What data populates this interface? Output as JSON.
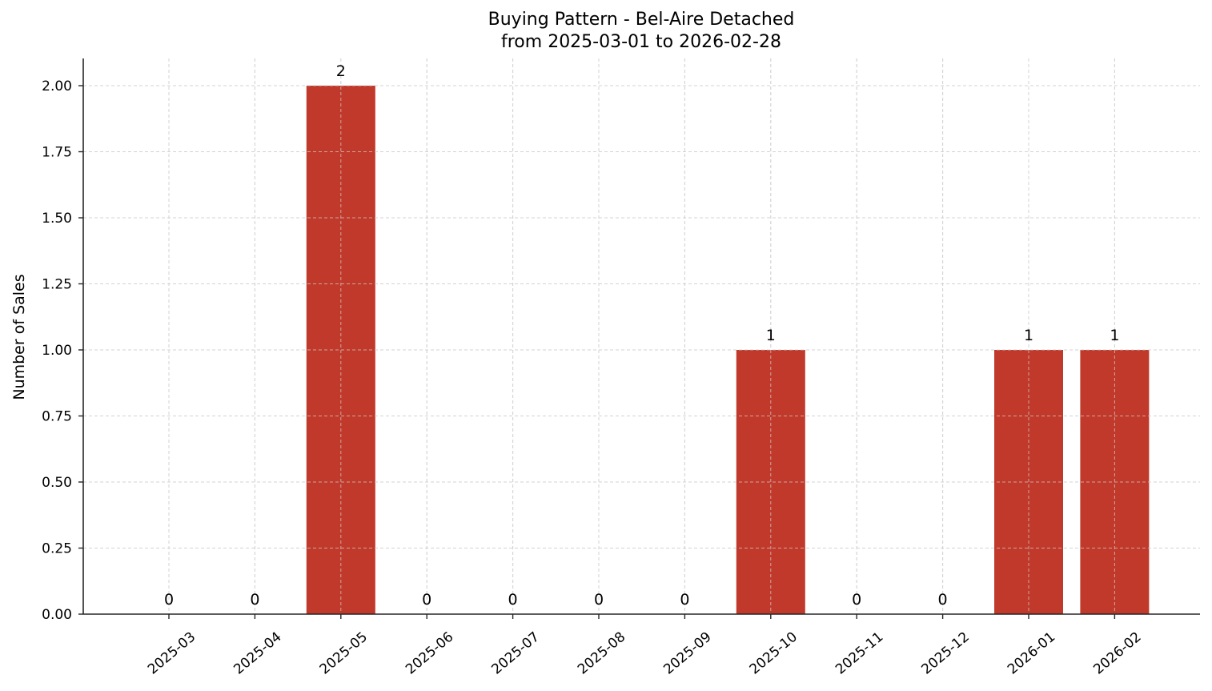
{
  "chart_data": {
    "type": "bar",
    "title": "Buying Pattern - Bel-Aire Detached",
    "subtitle": "from 2025-03-01 to 2026-02-28",
    "xlabel": "",
    "ylabel": "Number of Sales",
    "categories": [
      "2025-03",
      "2025-04",
      "2025-05",
      "2025-06",
      "2025-07",
      "2025-08",
      "2025-09",
      "2025-10",
      "2025-11",
      "2025-12",
      "2026-01",
      "2026-02"
    ],
    "values": [
      0,
      0,
      2,
      0,
      0,
      0,
      0,
      1,
      0,
      0,
      1,
      1
    ],
    "data_labels": [
      "0",
      "0",
      "2",
      "0",
      "0",
      "0",
      "0",
      "1",
      "0",
      "0",
      "1",
      "1"
    ],
    "ylim": [
      0,
      2.1
    ],
    "yticks": [
      "0.00",
      "0.25",
      "0.50",
      "0.75",
      "1.00",
      "1.25",
      "1.50",
      "1.75",
      "2.00"
    ],
    "ytick_values": [
      0,
      0.25,
      0.5,
      0.75,
      1.0,
      1.25,
      1.5,
      1.75,
      2.0
    ],
    "grid": true,
    "grid_style": "dashed",
    "legend": null,
    "colors": {
      "bar": "#c0392b",
      "grid": "#d3d3d3",
      "axis": "#262626",
      "text": "#000000"
    }
  }
}
